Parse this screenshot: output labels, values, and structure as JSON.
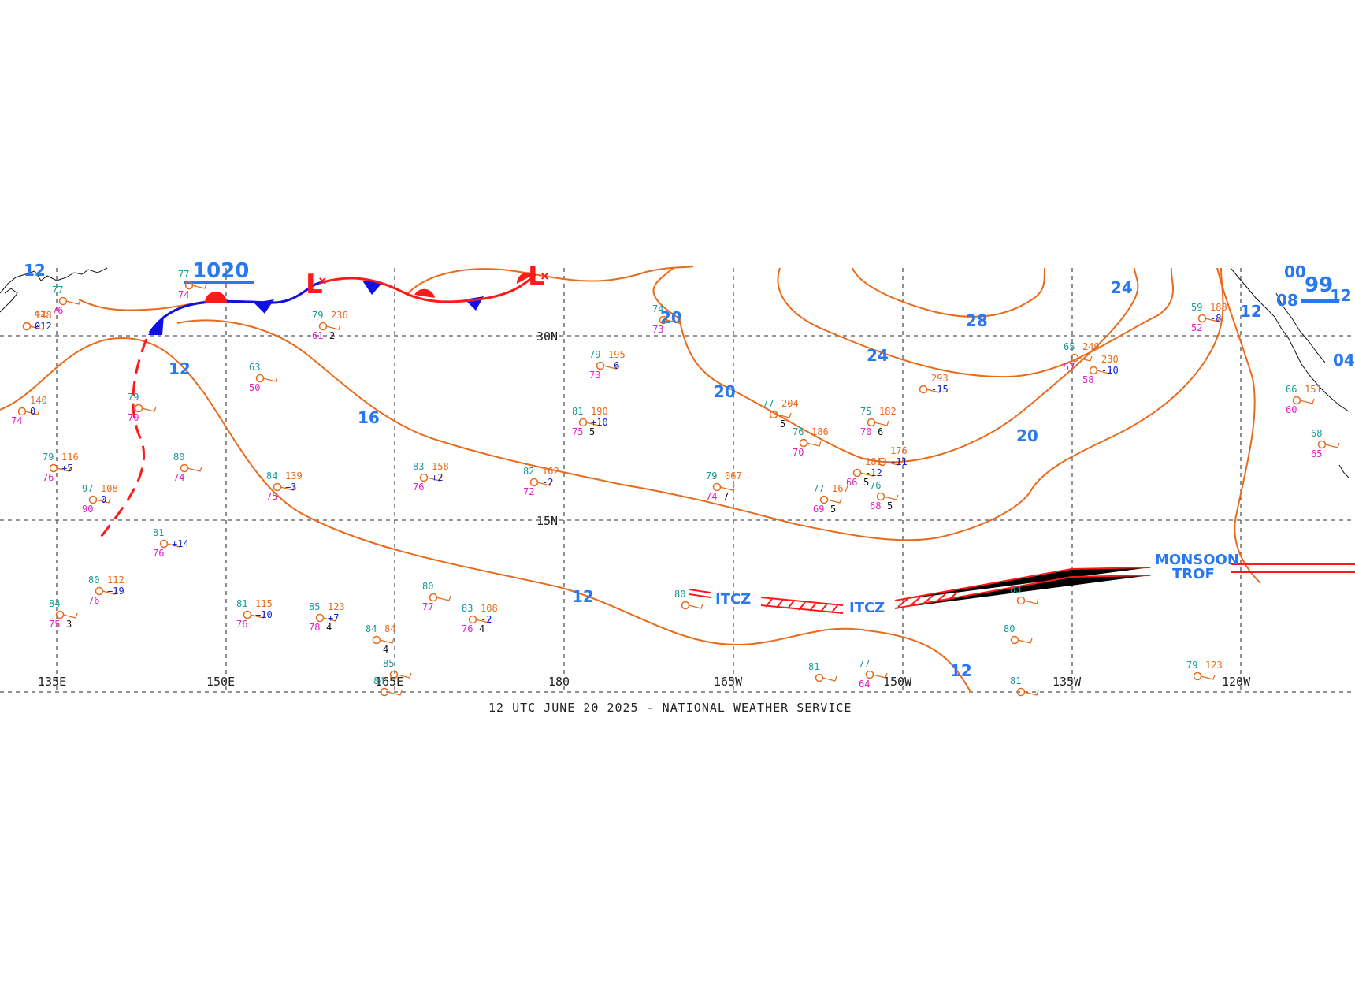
{
  "caption": "12 UTC JUNE 20 2025 - NATIONAL WEATHER SERVICE",
  "colors": {
    "isobar": "#e86a1a",
    "label": "#2a78f0",
    "front_cold": "#1010e0",
    "front_warm": "#ff1a1a",
    "itcz": "#ff1a1a",
    "grid": "#555555"
  },
  "longitude_labels": [
    "135E",
    "150E",
    "165E",
    "180",
    "165W",
    "150W",
    "135W",
    "120W"
  ],
  "latitude_labels": [
    "30N",
    "15N"
  ],
  "isobar_labels": [
    {
      "id": "iso-12-w",
      "text": "12"
    },
    {
      "id": "iso-16",
      "text": "16"
    },
    {
      "id": "iso-12-c",
      "text": "12"
    },
    {
      "id": "iso-20-n",
      "text": "20"
    },
    {
      "id": "iso-20-c",
      "text": "20"
    },
    {
      "id": "iso-28",
      "text": "28"
    },
    {
      "id": "iso-24-c",
      "text": "24"
    },
    {
      "id": "iso-24-ne",
      "text": "24"
    },
    {
      "id": "iso-20-e",
      "text": "20"
    },
    {
      "id": "iso-12-e",
      "text": "12"
    },
    {
      "id": "iso-12-se",
      "text": "12"
    },
    {
      "id": "iso-12-ne",
      "text": "12"
    },
    {
      "id": "iso-12-nw",
      "text": "12"
    }
  ],
  "pressure_headers": [
    {
      "id": "hdr-1020",
      "text": "1020"
    },
    {
      "id": "hdr-99",
      "text": "99"
    },
    {
      "id": "hdr-08",
      "text": "08"
    },
    {
      "id": "hdr-04",
      "text": "04"
    },
    {
      "id": "hdr-00",
      "text": "00"
    }
  ],
  "lows": [
    {
      "id": "low-1",
      "text": "L"
    },
    {
      "id": "low-2",
      "text": "L"
    }
  ],
  "zones": [
    {
      "id": "itcz-1",
      "text": "ITCZ"
    },
    {
      "id": "itcz-2",
      "text": "ITCZ"
    },
    {
      "id": "monsoon-1",
      "text": "MONSOON"
    },
    {
      "id": "monsoon-2",
      "text": "TROF"
    }
  ],
  "stations": [
    {
      "t": "77",
      "p": "",
      "d": "74",
      "tend": "",
      "vis": ""
    },
    {
      "t": "79",
      "p": "236",
      "d": "61",
      "tend": "",
      "vis": "2"
    },
    {
      "t": "63",
      "p": "",
      "d": "50",
      "tend": "",
      "vis": ""
    },
    {
      "t": "79",
      "p": "",
      "d": "70",
      "tend": "",
      "vis": ""
    },
    {
      "t": "79",
      "p": "116",
      "d": "76",
      "tend": "+5",
      "vis": ""
    },
    {
      "t": "80",
      "p": "",
      "d": "74",
      "tend": "",
      "vis": ""
    },
    {
      "t": "97",
      "p": "108",
      "d": "90",
      "tend": "0",
      "vis": ""
    },
    {
      "t": "84",
      "p": "139",
      "d": "75",
      "tend": "+3",
      "vis": ""
    },
    {
      "t": "83",
      "p": "158",
      "d": "76",
      "tend": "+2",
      "vis": ""
    },
    {
      "t": "82",
      "p": "162",
      "d": "72",
      "tend": "-2",
      "vis": ""
    },
    {
      "t": "79",
      "p": "195",
      "d": "73",
      "tend": "-6",
      "vis": ""
    },
    {
      "t": "81",
      "p": "190",
      "d": "75",
      "tend": "+10",
      "vis": "5"
    },
    {
      "t": "74",
      "p": "",
      "d": "73",
      "tend": "",
      "vis": ""
    },
    {
      "t": "77",
      "p": "204",
      "d": "",
      "tend": "",
      "vis": "5"
    },
    {
      "t": "75",
      "p": "182",
      "d": "70",
      "tend": "",
      "vis": "6"
    },
    {
      "t": "76",
      "p": "186",
      "d": "70",
      "tend": "",
      "vis": ""
    },
    {
      "t": "79",
      "p": "067",
      "d": "74",
      "tend": "",
      "vis": "7"
    },
    {
      "t": "77",
      "p": "167",
      "d": "69",
      "tend": "",
      "vis": "5"
    },
    {
      "t": "76",
      "p": "",
      "d": "68",
      "tend": "",
      "vis": "5"
    },
    {
      "t": "",
      "p": "176",
      "d": "",
      "tend": "-11",
      "vis": ""
    },
    {
      "t": "",
      "p": "181",
      "d": "66",
      "tend": "-12",
      "vis": "5"
    },
    {
      "t": "",
      "p": "293",
      "d": "",
      "tend": "-15",
      "vis": ""
    },
    {
      "t": "65",
      "p": "249",
      "d": "57",
      "tend": "",
      "vis": ""
    },
    {
      "t": "",
      "p": "230",
      "d": "58",
      "tend": "-10",
      "vis": ""
    },
    {
      "t": "59",
      "p": "188",
      "d": "52",
      "tend": "-8",
      "vis": ""
    },
    {
      "t": "66",
      "p": "151",
      "d": "60",
      "tend": "",
      "vis": ""
    },
    {
      "t": "68",
      "p": "",
      "d": "65",
      "tend": "",
      "vis": ""
    },
    {
      "t": "81",
      "p": "",
      "d": "76",
      "tend": "+14",
      "vis": ""
    },
    {
      "t": "80",
      "p": "112",
      "d": "76",
      "tend": "+19",
      "vis": ""
    },
    {
      "t": "84",
      "p": "",
      "d": "75",
      "tend": "",
      "vis": "3"
    },
    {
      "t": "81",
      "p": "115",
      "d": "76",
      "tend": "+10",
      "vis": ""
    },
    {
      "t": "85",
      "p": "123",
      "d": "78",
      "tend": "+7",
      "vis": "4"
    },
    {
      "t": "84",
      "p": "84",
      "d": "",
      "tend": "",
      "vis": "4"
    },
    {
      "t": "80",
      "p": "",
      "d": "77",
      "tend": "",
      "vis": ""
    },
    {
      "t": "83",
      "p": "108",
      "d": "76",
      "tend": "-2",
      "vis": "4"
    },
    {
      "t": "85",
      "p": "",
      "d": "",
      "tend": "",
      "vis": ""
    },
    {
      "t": "84",
      "p": "",
      "d": "",
      "tend": "",
      "vis": ""
    },
    {
      "t": "80",
      "p": "",
      "d": "",
      "tend": "",
      "vis": ""
    },
    {
      "t": "83",
      "p": "",
      "d": "",
      "tend": "",
      "vis": ""
    },
    {
      "t": "80",
      "p": "",
      "d": "",
      "tend": "",
      "vis": ""
    },
    {
      "t": "81",
      "p": "",
      "d": "",
      "tend": "",
      "vis": ""
    },
    {
      "t": "77",
      "p": "",
      "d": "64",
      "tend": "",
      "vis": ""
    },
    {
      "t": "81",
      "p": "",
      "d": "",
      "tend": "",
      "vis": ""
    },
    {
      "t": "79",
      "p": "123",
      "d": "",
      "tend": "",
      "vis": ""
    },
    {
      "t": "77",
      "p": "",
      "d": "76",
      "tend": "",
      "vis": ""
    },
    {
      "t": "",
      "p": "140",
      "d": "74",
      "tend": "0",
      "vis": ""
    },
    {
      "t": "",
      "p": "148",
      "d": "",
      "tend": "-12",
      "vis": ""
    },
    {
      "t": "",
      "p": "97",
      "d": "",
      "tend": "0",
      "vis": ""
    }
  ]
}
